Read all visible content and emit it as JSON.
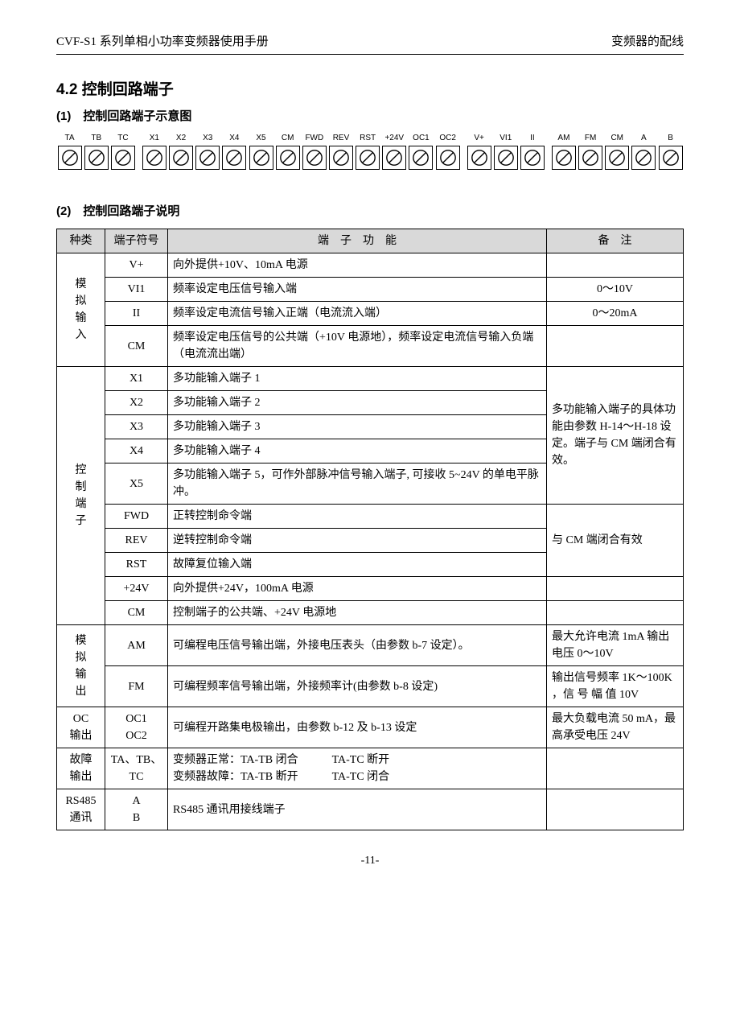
{
  "header": {
    "left": "CVF-S1 系列单相小功率变频器使用手册",
    "right": "变频器的配线"
  },
  "section_title": "4.2 控制回路端子",
  "sub1": "(1)　控制回路端子示意图",
  "sub2": "(2)　控制回路端子说明",
  "terminals": [
    "TA",
    "TB",
    "TC",
    "X1",
    "X2",
    "X3",
    "X4",
    "X5",
    "CM",
    "FWD",
    "REV",
    "RST",
    "+24V",
    "OC1",
    "OC2",
    "V+",
    "VI1",
    "II",
    "AM",
    "FM",
    "CM",
    "A",
    "B"
  ],
  "terminal_gap_after": [
    2,
    14,
    17
  ],
  "columns": {
    "c1": "种类",
    "c2": "端子符号",
    "c3": "端　子　功　能",
    "c4": "备　注"
  },
  "rows": [
    {
      "cat": "模拟输入",
      "cat_rowspan": 4,
      "sym": "V+",
      "func": "向外提供+10V、10mA 电源",
      "note": ""
    },
    {
      "sym": "VI1",
      "func": "频率设定电压信号输入端",
      "note": "0～10V",
      "note_align": "center"
    },
    {
      "sym": "II",
      "func": "频率设定电流信号输入正端（电流流入端）",
      "note": "0～20mA",
      "note_align": "center"
    },
    {
      "sym": "CM",
      "func": "频率设定电压信号的公共端（+10V 电源地），频率设定电流信号输入负端（电流流出端）",
      "note": ""
    },
    {
      "cat": "控制端子",
      "cat_rowspan": 10,
      "sym": "X1",
      "func": "多功能输入端子 1",
      "note": "多功能输入端子的具体功能由参数 H-14～H-18 设定。端子与 CM 端闭合有效。",
      "note_rowspan": 5
    },
    {
      "sym": "X2",
      "func": "多功能输入端子 2"
    },
    {
      "sym": "X3",
      "func": "多功能输入端子 3"
    },
    {
      "sym": "X4",
      "func": "多功能输入端子 4"
    },
    {
      "sym": "X5",
      "func": "多功能输入端子 5，可作外部脉冲信号输入端子, 可接收 5~24V 的单电平脉冲。"
    },
    {
      "sym": "FWD",
      "func": "正转控制命令端",
      "note": "与 CM 端闭合有效",
      "note_rowspan": 3,
      "note_valign": "middle"
    },
    {
      "sym": "REV",
      "func": "逆转控制命令端"
    },
    {
      "sym": "RST",
      "func": "故障复位输入端"
    },
    {
      "sym": "+24V",
      "func": "向外提供+24V，100mA 电源",
      "note": ""
    },
    {
      "sym": "CM",
      "func": "控制端子的公共端、+24V 电源地",
      "note": ""
    },
    {
      "cat": "模拟输出",
      "cat_rowspan": 2,
      "sym": "AM",
      "func": "可编程电压信号输出端，外接电压表头（由参数 b-7 设定）。",
      "note": "最大允许电流 1mA 输出电压 0～10V"
    },
    {
      "sym": "FM",
      "func": "可编程频率信号输出端，外接频率计(由参数 b-8 设定)",
      "note": "输出信号频率 1K～100K ，信 号 幅 值 10V"
    },
    {
      "cat": "OC\n输出",
      "cat_rowspan": 1,
      "sym": "OC1\nOC2",
      "func": "可编程开路集电极输出，由参数 b-12 及 b-13 设定",
      "note": "最大负载电流 50 mA，最高承受电压 24V"
    },
    {
      "cat": "故障\n输出",
      "cat_rowspan": 1,
      "sym": "TA、TB、TC",
      "func": "变频器正常：TA-TB 闭合　　　TA-TC 断开\n变频器故障：TA-TB 断开　　　TA-TC 闭合",
      "note": ""
    },
    {
      "cat": "RS485\n通讯",
      "cat_rowspan": 1,
      "sym": "A\nB",
      "func": "RS485 通讯用接线端子",
      "note": ""
    }
  ],
  "footer": "-11-"
}
